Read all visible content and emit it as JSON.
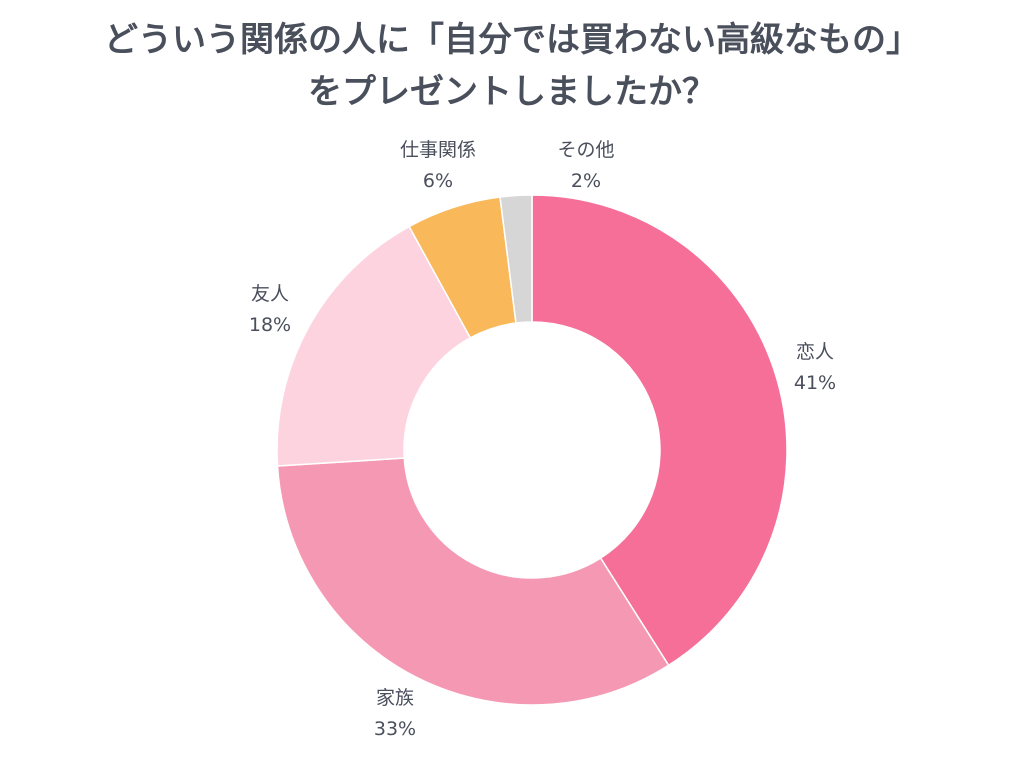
{
  "chart_data": {
    "type": "pie",
    "variant": "donut",
    "title_lines": [
      "どういう関係の人に「自分では買わない高級なもの」",
      "をプレゼントしましたか？"
    ],
    "slices": [
      {
        "label": "恋人",
        "value": 41,
        "value_label": "41%",
        "color": "#f56f98"
      },
      {
        "label": "家族",
        "value": 33,
        "value_label": "33%",
        "color": "#f598b3"
      },
      {
        "label": "友人",
        "value": 18,
        "value_label": "18%",
        "color": "#fdd3e0"
      },
      {
        "label": "仕事関係",
        "value": 6,
        "value_label": "6%",
        "color": "#f9b95a"
      },
      {
        "label": "その他",
        "value": 2,
        "value_label": "2%",
        "color": "#d6d6d6"
      }
    ]
  }
}
